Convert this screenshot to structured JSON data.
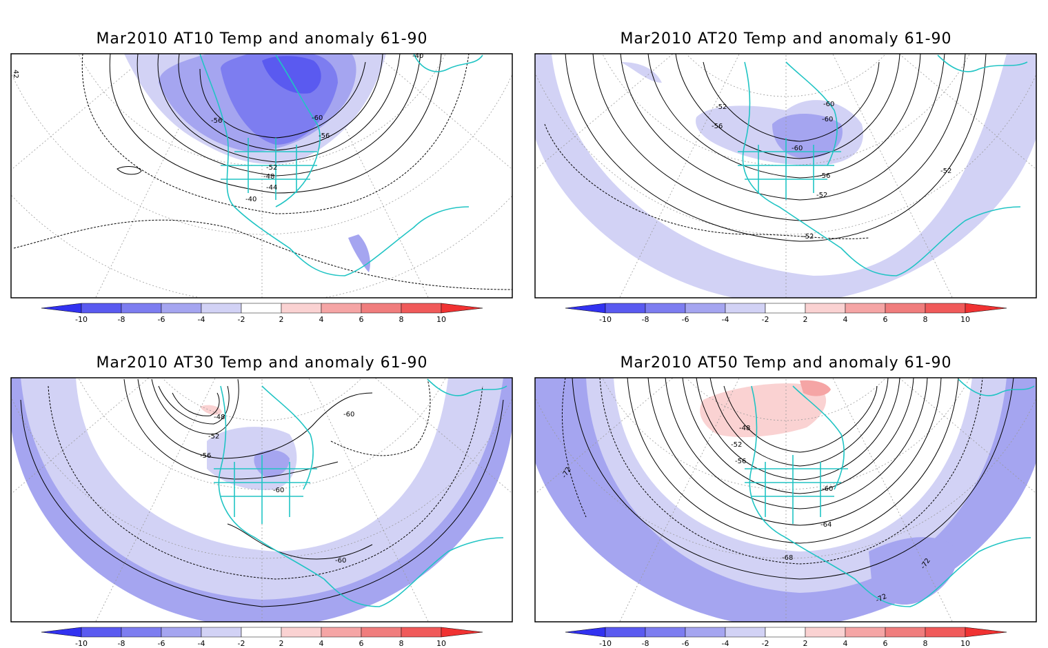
{
  "figure": {
    "panels": [
      {
        "id": "at10",
        "title": "Mar2010 AT10 Temp and anomaly 61-90",
        "contour_labels": [
          "-40",
          "-56",
          "-60",
          "-56",
          "-52",
          "-48",
          "-44",
          "-40",
          "42"
        ]
      },
      {
        "id": "at20",
        "title": "Mar2010 AT20 Temp and anomaly 61-90",
        "contour_labels": [
          "-52",
          "-56",
          "-60",
          "-60",
          "-60",
          "-56",
          "-52",
          "-52",
          "-52"
        ]
      },
      {
        "id": "at30",
        "title": "Mar2010 AT30 Temp and anomaly 61-90",
        "contour_labels": [
          "-48",
          "-52",
          "-56",
          "-60",
          "-60",
          "-60"
        ]
      },
      {
        "id": "at50",
        "title": "Mar2010 AT50 Temp and anomaly 61-90",
        "contour_labels": [
          "-48",
          "-52",
          "-56",
          "-60",
          "-64",
          "-68",
          "-72",
          "-72",
          "-72"
        ]
      }
    ],
    "colorbar": {
      "tick_labels": [
        "-10",
        "-8",
        "-6",
        "-4",
        "-2",
        "2",
        "4",
        "6",
        "8",
        "10"
      ],
      "colors": [
        "#3232f0",
        "#5a5af0",
        "#7d7df0",
        "#a5a5f0",
        "#d2d2f5",
        "#ffffff",
        "#fad2d2",
        "#f5a5a5",
        "#f07d7d",
        "#f05a5a",
        "#f03232"
      ]
    },
    "map_colors": {
      "coast": "#20c4c4",
      "contour": "#000000",
      "graticule": "#999999"
    }
  }
}
